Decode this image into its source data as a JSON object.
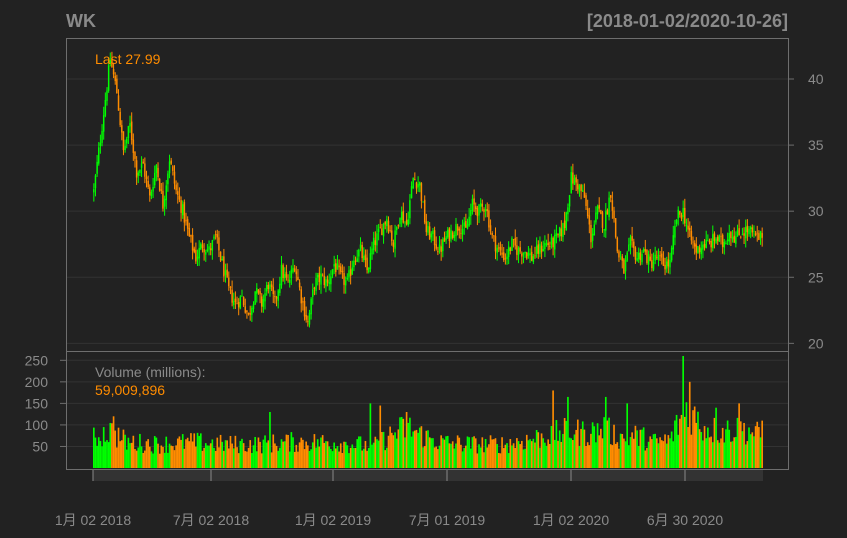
{
  "chart_data": {
    "type": "candlestick",
    "ticker": "WK",
    "date_range": "[2018-01-02/2020-10-26]",
    "last_label": "Last 27.99",
    "last_value": 27.99,
    "volume_label": "Volume (millions):",
    "volume_value": "59,009,896",
    "price_axis": {
      "ticks": [
        20,
        25,
        30,
        35,
        40
      ],
      "ylim": [
        19.8,
        42.8
      ]
    },
    "volume_axis": {
      "ticks": [
        50,
        100,
        150,
        200,
        250
      ],
      "ylim": [
        0,
        260
      ]
    },
    "x_ticks": [
      "1月 02 2018",
      "7月 02 2018",
      "1月 02 2019",
      "7月 01 2019",
      "1月 02 2020",
      "6月 30 2020"
    ],
    "colors": {
      "background": "#222222",
      "up": "#00ff00",
      "down": "#ff8c00",
      "text": "#8a8a8a",
      "last": "#ff8c00",
      "grid": "#333333",
      "frame": "#6e6e6e"
    },
    "price_path": [
      [
        0,
        31.5
      ],
      [
        5,
        36.5
      ],
      [
        10,
        41.5
      ],
      [
        14,
        39
      ],
      [
        18,
        34.5
      ],
      [
        22,
        36.5
      ],
      [
        26,
        33
      ],
      [
        30,
        33.5
      ],
      [
        34,
        31
      ],
      [
        38,
        33.5
      ],
      [
        42,
        30.5
      ],
      [
        46,
        34
      ],
      [
        50,
        31.5
      ],
      [
        54,
        30
      ],
      [
        58,
        28
      ],
      [
        62,
        26.5
      ],
      [
        66,
        27.5
      ],
      [
        70,
        27
      ],
      [
        74,
        28
      ],
      [
        78,
        26
      ],
      [
        82,
        24
      ],
      [
        86,
        23
      ],
      [
        90,
        23.5
      ],
      [
        94,
        22
      ],
      [
        98,
        24
      ],
      [
        102,
        23
      ],
      [
        106,
        24.5
      ],
      [
        110,
        23
      ],
      [
        114,
        25.5
      ],
      [
        118,
        24.5
      ],
      [
        122,
        26
      ],
      [
        126,
        23.5
      ],
      [
        130,
        21.5
      ],
      [
        134,
        24.5
      ],
      [
        138,
        25
      ],
      [
        142,
        24.5
      ],
      [
        146,
        26
      ],
      [
        150,
        25
      ],
      [
        154,
        24.5
      ],
      [
        158,
        26.5
      ],
      [
        162,
        27
      ],
      [
        166,
        25.5
      ],
      [
        170,
        27.5
      ],
      [
        174,
        28.5
      ],
      [
        178,
        29.5
      ],
      [
        182,
        27.5
      ],
      [
        186,
        30
      ],
      [
        190,
        29
      ],
      [
        194,
        32.5
      ],
      [
        198,
        32
      ],
      [
        202,
        28.5
      ],
      [
        206,
        28
      ],
      [
        210,
        27
      ],
      [
        214,
        28
      ],
      [
        218,
        28.5
      ],
      [
        222,
        29
      ],
      [
        226,
        28.5
      ],
      [
        230,
        30.5
      ],
      [
        234,
        30
      ],
      [
        238,
        30.5
      ],
      [
        242,
        28
      ],
      [
        246,
        27
      ],
      [
        250,
        26.5
      ],
      [
        254,
        27.5
      ],
      [
        258,
        27
      ],
      [
        262,
        27
      ],
      [
        266,
        26.5
      ],
      [
        270,
        27
      ],
      [
        274,
        27.5
      ],
      [
        278,
        27.5
      ],
      [
        282,
        28
      ],
      [
        286,
        29
      ],
      [
        290,
        32.5
      ],
      [
        294,
        32
      ],
      [
        298,
        31
      ],
      [
        302,
        28
      ],
      [
        306,
        30
      ],
      [
        310,
        29
      ],
      [
        314,
        31.5
      ],
      [
        318,
        27
      ],
      [
        322,
        25.5
      ],
      [
        326,
        27.5
      ],
      [
        330,
        26.5
      ],
      [
        334,
        27
      ],
      [
        338,
        26
      ],
      [
        342,
        26.5
      ],
      [
        346,
        26
      ],
      [
        350,
        26
      ],
      [
        354,
        29.5
      ],
      [
        358,
        30
      ],
      [
        362,
        28
      ],
      [
        366,
        27
      ],
      [
        370,
        27.5
      ],
      [
        374,
        27.5
      ],
      [
        378,
        28
      ],
      [
        382,
        27.5
      ],
      [
        386,
        28.5
      ],
      [
        390,
        28
      ],
      [
        394,
        28.5
      ],
      [
        398,
        28.5
      ],
      [
        402,
        28
      ],
      [
        406,
        27.99
      ]
    ],
    "volume_path": [
      [
        0,
        70
      ],
      [
        10,
        85
      ],
      [
        20,
        60
      ],
      [
        40,
        55
      ],
      [
        60,
        60
      ],
      [
        80,
        55
      ],
      [
        100,
        55
      ],
      [
        120,
        60
      ],
      [
        140,
        60
      ],
      [
        160,
        55
      ],
      [
        170,
        50
      ],
      [
        180,
        75
      ],
      [
        190,
        95
      ],
      [
        200,
        75
      ],
      [
        210,
        60
      ],
      [
        230,
        55
      ],
      [
        250,
        55
      ],
      [
        270,
        70
      ],
      [
        280,
        80
      ],
      [
        290,
        85
      ],
      [
        300,
        80
      ],
      [
        310,
        90
      ],
      [
        320,
        70
      ],
      [
        330,
        75
      ],
      [
        340,
        60
      ],
      [
        350,
        65
      ],
      [
        360,
        140
      ],
      [
        370,
        95
      ],
      [
        380,
        85
      ],
      [
        390,
        90
      ],
      [
        400,
        85
      ],
      [
        406,
        70
      ]
    ],
    "volume_spikes": [
      [
        12,
        120
      ],
      [
        107,
        130
      ],
      [
        168,
        150
      ],
      [
        174,
        145
      ],
      [
        190,
        130
      ],
      [
        279,
        180
      ],
      [
        288,
        165
      ],
      [
        311,
        165
      ],
      [
        324,
        150
      ],
      [
        358,
        260
      ],
      [
        362,
        200
      ],
      [
        378,
        140
      ],
      [
        392,
        150
      ],
      [
        406,
        110
      ]
    ]
  }
}
